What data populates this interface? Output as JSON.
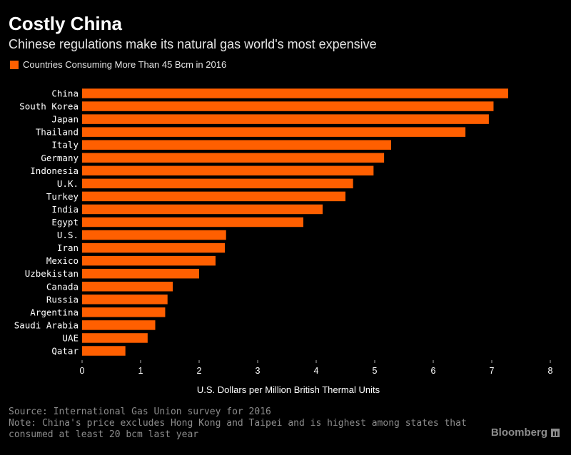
{
  "header": {
    "title": "Costly China",
    "subtitle": "Chinese regulations make its natural gas world's most expensive"
  },
  "colors": {
    "bar": "#FF5F00",
    "background": "#000000",
    "label": "#FFFFFF",
    "muted": "#8C8C8C"
  },
  "footer": {
    "source": "Source: International Gas Union survey for 2016",
    "note_line1": "Note: China's price excludes Hong Kong and Taipei and is highest among states that",
    "note_line2": "consumed at least 20 bcm last year",
    "brand": "Bloomberg",
    "brand_icon": "bloomberg-logo-icon"
  },
  "chart_data": {
    "type": "bar",
    "orientation": "horizontal",
    "legend": "Countries Consuming More Than 45 Bcm in 2016",
    "legend_position": "top-left",
    "categories": [
      "China",
      "South Korea",
      "Japan",
      "Thailand",
      "Italy",
      "Germany",
      "Indonesia",
      "U.K.",
      "Turkey",
      "India",
      "Egypt",
      "U.S.",
      "Iran",
      "Mexico",
      "Uzbekistan",
      "Canada",
      "Russia",
      "Argentina",
      "Saudi Arabia",
      "UAE",
      "Qatar"
    ],
    "series": [
      {
        "name": "Countries Consuming More Than 45 Bcm in 2016",
        "values": [
          7.28,
          7.03,
          6.95,
          6.55,
          5.28,
          5.16,
          4.98,
          4.63,
          4.5,
          4.11,
          3.78,
          2.46,
          2.44,
          2.28,
          2.0,
          1.55,
          1.46,
          1.42,
          1.25,
          1.12,
          0.74
        ]
      }
    ],
    "xlabel": "U.S. Dollars per Million British Thermal Units",
    "xlim": [
      0,
      8
    ],
    "xticks": [
      "0",
      "1",
      "2",
      "3",
      "4",
      "5",
      "6",
      "7",
      "8"
    ],
    "grid": false
  }
}
